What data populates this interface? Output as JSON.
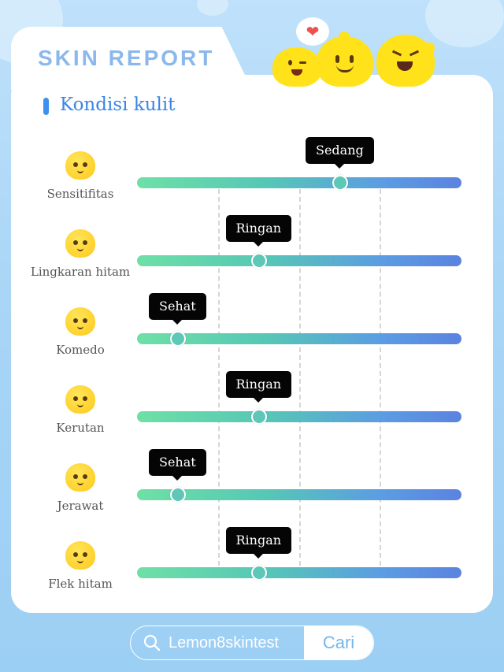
{
  "header": {
    "title": "SKIN REPORT"
  },
  "section": {
    "title": "Kondisi kulit"
  },
  "levels": [
    "Sehat",
    "Ringan",
    "Sedang"
  ],
  "rows": [
    {
      "label": "Sensitifitas",
      "level": "Sedang",
      "value": 0.625,
      "icon": "kissing-face-icon"
    },
    {
      "label": "Lingkaran hitam",
      "level": "Ringan",
      "value": 0.375,
      "icon": "tired-face-icon"
    },
    {
      "label": "Komedo",
      "level": "Sehat",
      "value": 0.125,
      "icon": "hand-over-mouth-face-icon"
    },
    {
      "label": "Kerutan",
      "level": "Ringan",
      "value": 0.375,
      "icon": "frowning-face-icon"
    },
    {
      "label": "Jerawat",
      "level": "Sehat",
      "value": 0.125,
      "icon": "surprised-face-icon"
    },
    {
      "label": "Flek hitam",
      "level": "Ringan",
      "value": 0.375,
      "icon": "squinting-face-icon"
    }
  ],
  "search": {
    "query": "Lemon8skintest",
    "button": "Cari"
  },
  "colors": {
    "title": "#8bb8ec",
    "section": "#3a86e2",
    "accent": "#3d8ff0",
    "tooltip_bg": "#050505",
    "track_start": "#6ee0a6",
    "track_end": "#5b83e0"
  }
}
